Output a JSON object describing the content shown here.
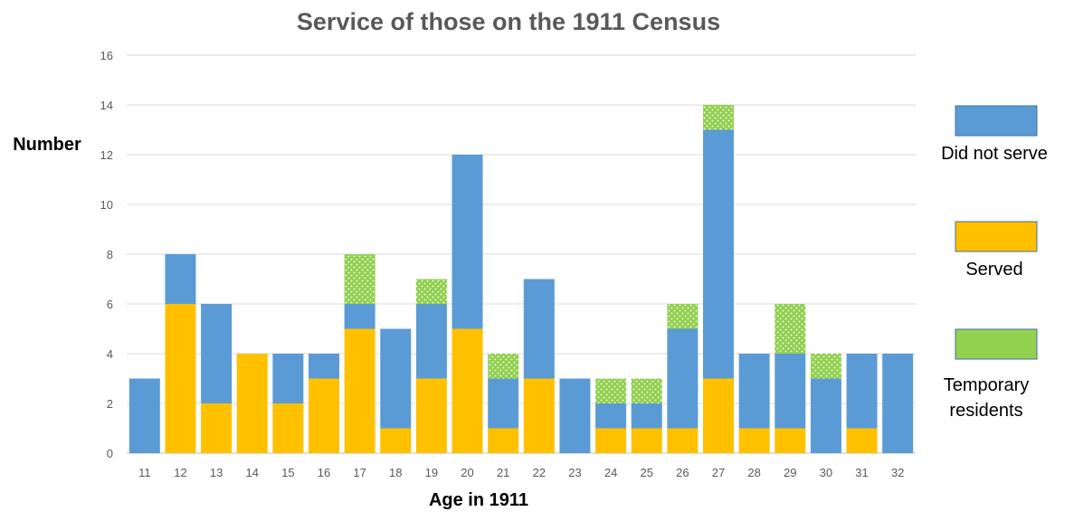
{
  "chart_data": {
    "type": "bar",
    "stacked": true,
    "title": "Service of those on the 1911 Census",
    "xlabel": "Age in 1911",
    "ylabel": "Number",
    "ylim": [
      0,
      16
    ],
    "yticks": [
      0,
      2,
      4,
      6,
      8,
      10,
      12,
      14,
      16
    ],
    "grid": true,
    "legend_position": "right",
    "categories": [
      "11",
      "12",
      "13",
      "14",
      "15",
      "16",
      "17",
      "18",
      "19",
      "20",
      "21",
      "22",
      "23",
      "24",
      "25",
      "26",
      "27",
      "28",
      "29",
      "30",
      "31",
      "32"
    ],
    "series": [
      {
        "name": "Served",
        "color": "#FFC000",
        "values": [
          0,
          6,
          2,
          4,
          2,
          3,
          5,
          1,
          3,
          5,
          1,
          3,
          0,
          1,
          1,
          1,
          3,
          1,
          1,
          0,
          1,
          0
        ]
      },
      {
        "name": "Did not serve",
        "color": "#5B9BD5",
        "values": [
          3,
          2,
          4,
          0,
          2,
          1,
          1,
          4,
          3,
          7,
          2,
          4,
          3,
          1,
          1,
          4,
          10,
          3,
          3,
          3,
          3,
          4
        ]
      },
      {
        "name": "Temporary residents",
        "color": "#92D050",
        "pattern": "dotted",
        "values": [
          0,
          0,
          0,
          0,
          0,
          0,
          2,
          0,
          1,
          0,
          1,
          0,
          0,
          1,
          1,
          1,
          1,
          0,
          2,
          1,
          0,
          0
        ]
      }
    ],
    "legend": [
      {
        "label": "Did not serve",
        "color": "#5B9BD5"
      },
      {
        "label": "Served",
        "color": "#FFC000"
      },
      {
        "label_lines": [
          "Temporary",
          "residents"
        ],
        "color": "#92D050"
      }
    ]
  }
}
